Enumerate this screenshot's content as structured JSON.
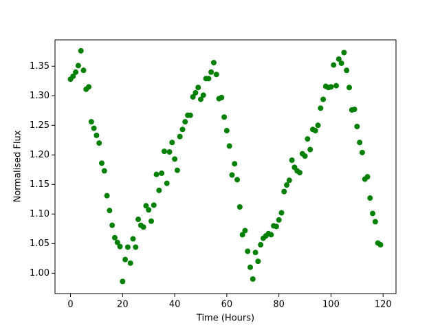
{
  "chart_data": {
    "type": "scatter",
    "xlabel": "Time (Hours)",
    "ylabel": "Normalised Flux",
    "color": "#008000",
    "x": [
      0,
      1,
      2,
      3,
      4,
      5,
      6,
      7,
      8,
      9,
      10,
      11,
      12,
      13,
      14,
      15,
      16,
      17,
      18,
      19,
      20,
      21,
      22,
      23,
      24,
      25,
      26,
      27,
      28,
      29,
      30,
      31,
      32,
      33,
      34,
      35,
      36,
      37,
      38,
      39,
      40,
      41,
      42,
      43,
      44,
      45,
      46,
      47,
      48,
      49,
      50,
      51,
      52,
      53,
      54,
      55,
      56,
      57,
      58,
      59,
      60,
      61,
      62,
      63,
      64,
      65,
      66,
      67,
      68,
      69,
      70,
      71,
      72,
      73,
      74,
      75,
      76,
      77,
      78,
      79,
      80,
      81,
      82,
      83,
      84,
      85,
      86,
      87,
      88,
      89,
      90,
      91,
      92,
      93,
      94,
      95,
      96,
      97,
      98,
      99,
      100,
      101,
      102,
      103,
      104,
      105,
      106,
      107,
      108,
      109,
      110,
      111,
      112,
      113,
      114,
      115,
      116,
      117,
      118,
      119
    ],
    "values": [
      1.328,
      1.333,
      1.34,
      1.351,
      1.376,
      1.343,
      1.311,
      1.315,
      1.256,
      1.245,
      1.233,
      1.22,
      1.186,
      1.173,
      1.131,
      1.106,
      1.081,
      1.06,
      1.052,
      1.045,
      0.986,
      1.023,
      1.044,
      1.017,
      1.058,
      1.044,
      1.091,
      1.081,
      1.078,
      1.114,
      1.107,
      1.088,
      1.115,
      1.167,
      1.14,
      1.169,
      1.206,
      1.152,
      1.205,
      1.221,
      1.193,
      1.174,
      1.231,
      1.243,
      1.256,
      1.267,
      1.267,
      1.298,
      1.305,
      1.314,
      1.294,
      1.301,
      1.329,
      1.329,
      1.34,
      1.356,
      1.336,
      1.295,
      1.297,
      1.264,
      1.241,
      1.215,
      1.166,
      1.185,
      1.158,
      1.112,
      1.065,
      1.072,
      1.037,
      1.01,
      0.99,
      1.035,
      1.02,
      1.048,
      1.059,
      1.063,
      1.067,
      1.065,
      1.08,
      1.079,
      1.09,
      1.102,
      1.138,
      1.149,
      1.157,
      1.191,
      1.179,
      1.173,
      1.17,
      1.202,
      1.198,
      1.227,
      1.209,
      1.243,
      1.241,
      1.25,
      1.279,
      1.294,
      1.316,
      1.314,
      1.315,
      1.352,
      1.317,
      1.362,
      1.355,
      1.373,
      1.343,
      1.314,
      1.276,
      1.277,
      1.248,
      1.221,
      1.204,
      1.159,
      1.163,
      1.127,
      1.101,
      1.087,
      1.051,
      1.048
    ],
    "xlim": [
      -5.95,
      124.95
    ],
    "ylim": [
      0.9655,
      1.3945
    ],
    "xticks": [
      0,
      20,
      40,
      60,
      80,
      100,
      120
    ],
    "yticks": [
      {
        "value": 1.0,
        "label": "1.00"
      },
      1.05,
      {
        "value": 1.1,
        "label": "1.10"
      },
      1.15,
      {
        "value": 1.2,
        "label": "1.20"
      },
      1.25,
      {
        "value": 1.3,
        "label": "1.30"
      },
      1.35
    ]
  }
}
